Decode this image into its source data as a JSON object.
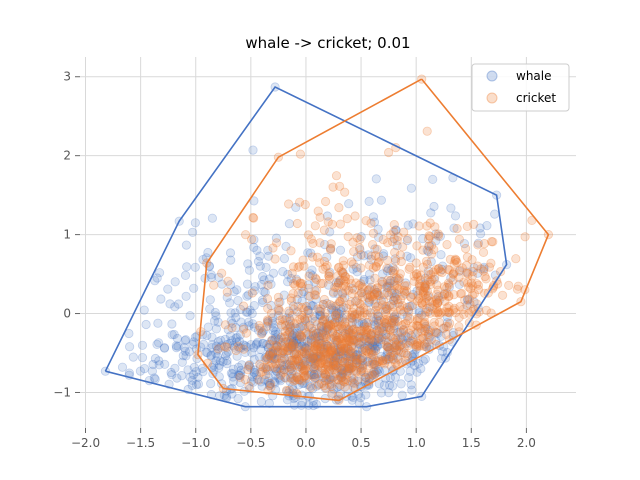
{
  "chart_data": {
    "type": "scatter",
    "title": "whale -> cricket; 0.01",
    "xlabel": "",
    "ylabel": "",
    "xlim": [
      -2.05,
      2.45
    ],
    "ylim": [
      -1.45,
      3.25
    ],
    "x_ticks": [
      -2.0,
      -1.5,
      -1.0,
      -0.5,
      0.0,
      0.5,
      1.0,
      1.5,
      2.0
    ],
    "x_tick_labels": [
      "−2.0",
      "−1.5",
      "−1.0",
      "−0.5",
      "0.0",
      "0.5",
      "1.0",
      "1.5",
      "2.0"
    ],
    "y_ticks": [
      -1,
      0,
      1,
      2,
      3
    ],
    "y_tick_labels": [
      "−1",
      "0",
      "1",
      "2",
      "3"
    ],
    "grid": true,
    "legend_position": "top-right",
    "series": [
      {
        "name": "whale",
        "color": "#4472c4",
        "marker_alpha": 0.18,
        "n_points": 1000,
        "seed": 7,
        "clusters": [
          {
            "cx": 0.05,
            "cy": -0.55,
            "sx": 0.55,
            "sy": 0.35,
            "weight": 0.45
          },
          {
            "cx": 0.55,
            "cy": -0.3,
            "sx": 0.4,
            "sy": 0.4,
            "weight": 0.2
          },
          {
            "cx": -0.6,
            "cy": 0.2,
            "sx": 0.45,
            "sy": 0.55,
            "weight": 0.15
          },
          {
            "cx": 0.9,
            "cy": 0.6,
            "sx": 0.5,
            "sy": 0.45,
            "weight": 0.12
          },
          {
            "cx": -1.0,
            "cy": -0.6,
            "sx": 0.35,
            "sy": 0.25,
            "weight": 0.08
          }
        ],
        "extremes": [
          {
            "x": -1.82,
            "y": -0.73
          },
          {
            "x": -1.15,
            "y": 1.17
          },
          {
            "x": -0.28,
            "y": 2.87
          },
          {
            "x": 1.73,
            "y": 1.5
          },
          {
            "x": 1.82,
            "y": 0.62
          },
          {
            "x": 1.05,
            "y": -1.05
          },
          {
            "x": 0.55,
            "y": -1.18
          },
          {
            "x": -0.55,
            "y": -1.18
          },
          {
            "x": -0.48,
            "y": 2.07
          },
          {
            "x": 1.15,
            "y": 1.7
          },
          {
            "x": -1.6,
            "y": -0.42
          },
          {
            "x": -1.35,
            "y": 0.45
          }
        ],
        "hull": [
          [
            -1.82,
            -0.73
          ],
          [
            -1.15,
            1.17
          ],
          [
            -0.28,
            2.87
          ],
          [
            1.73,
            1.5
          ],
          [
            1.82,
            0.62
          ],
          [
            1.05,
            -1.05
          ],
          [
            0.55,
            -1.18
          ],
          [
            -0.55,
            -1.18
          ],
          [
            -1.82,
            -0.73
          ]
        ]
      },
      {
        "name": "cricket",
        "color": "#ed7d31",
        "marker_alpha": 0.22,
        "n_points": 1000,
        "seed": 13,
        "clusters": [
          {
            "cx": 0.2,
            "cy": -0.5,
            "sx": 0.4,
            "sy": 0.3,
            "weight": 0.45
          },
          {
            "cx": 0.8,
            "cy": -0.05,
            "sx": 0.45,
            "sy": 0.4,
            "weight": 0.25
          },
          {
            "cx": 1.3,
            "cy": 0.35,
            "sx": 0.35,
            "sy": 0.35,
            "weight": 0.15
          },
          {
            "cx": 0.3,
            "cy": 0.6,
            "sx": 0.45,
            "sy": 0.45,
            "weight": 0.15
          }
        ],
        "extremes": [
          {
            "x": 1.05,
            "y": 2.97
          },
          {
            "x": 2.2,
            "y": 1.0
          },
          {
            "x": 1.95,
            "y": 0.15
          },
          {
            "x": 0.3,
            "y": -1.1
          },
          {
            "x": -0.75,
            "y": -0.95
          },
          {
            "x": -0.98,
            "y": -0.52
          },
          {
            "x": -0.9,
            "y": 0.64
          },
          {
            "x": -0.25,
            "y": 1.98
          },
          {
            "x": 1.1,
            "y": 2.31
          },
          {
            "x": 0.75,
            "y": 2.04
          },
          {
            "x": 2.05,
            "y": 1.18
          },
          {
            "x": -0.05,
            "y": 2.02
          }
        ],
        "hull": [
          [
            1.05,
            2.97
          ],
          [
            2.2,
            1.0
          ],
          [
            1.95,
            0.15
          ],
          [
            0.3,
            -1.1
          ],
          [
            -0.75,
            -0.95
          ],
          [
            -0.98,
            -0.52
          ],
          [
            -0.9,
            0.64
          ],
          [
            -0.25,
            1.98
          ],
          [
            1.05,
            2.97
          ]
        ]
      }
    ]
  }
}
